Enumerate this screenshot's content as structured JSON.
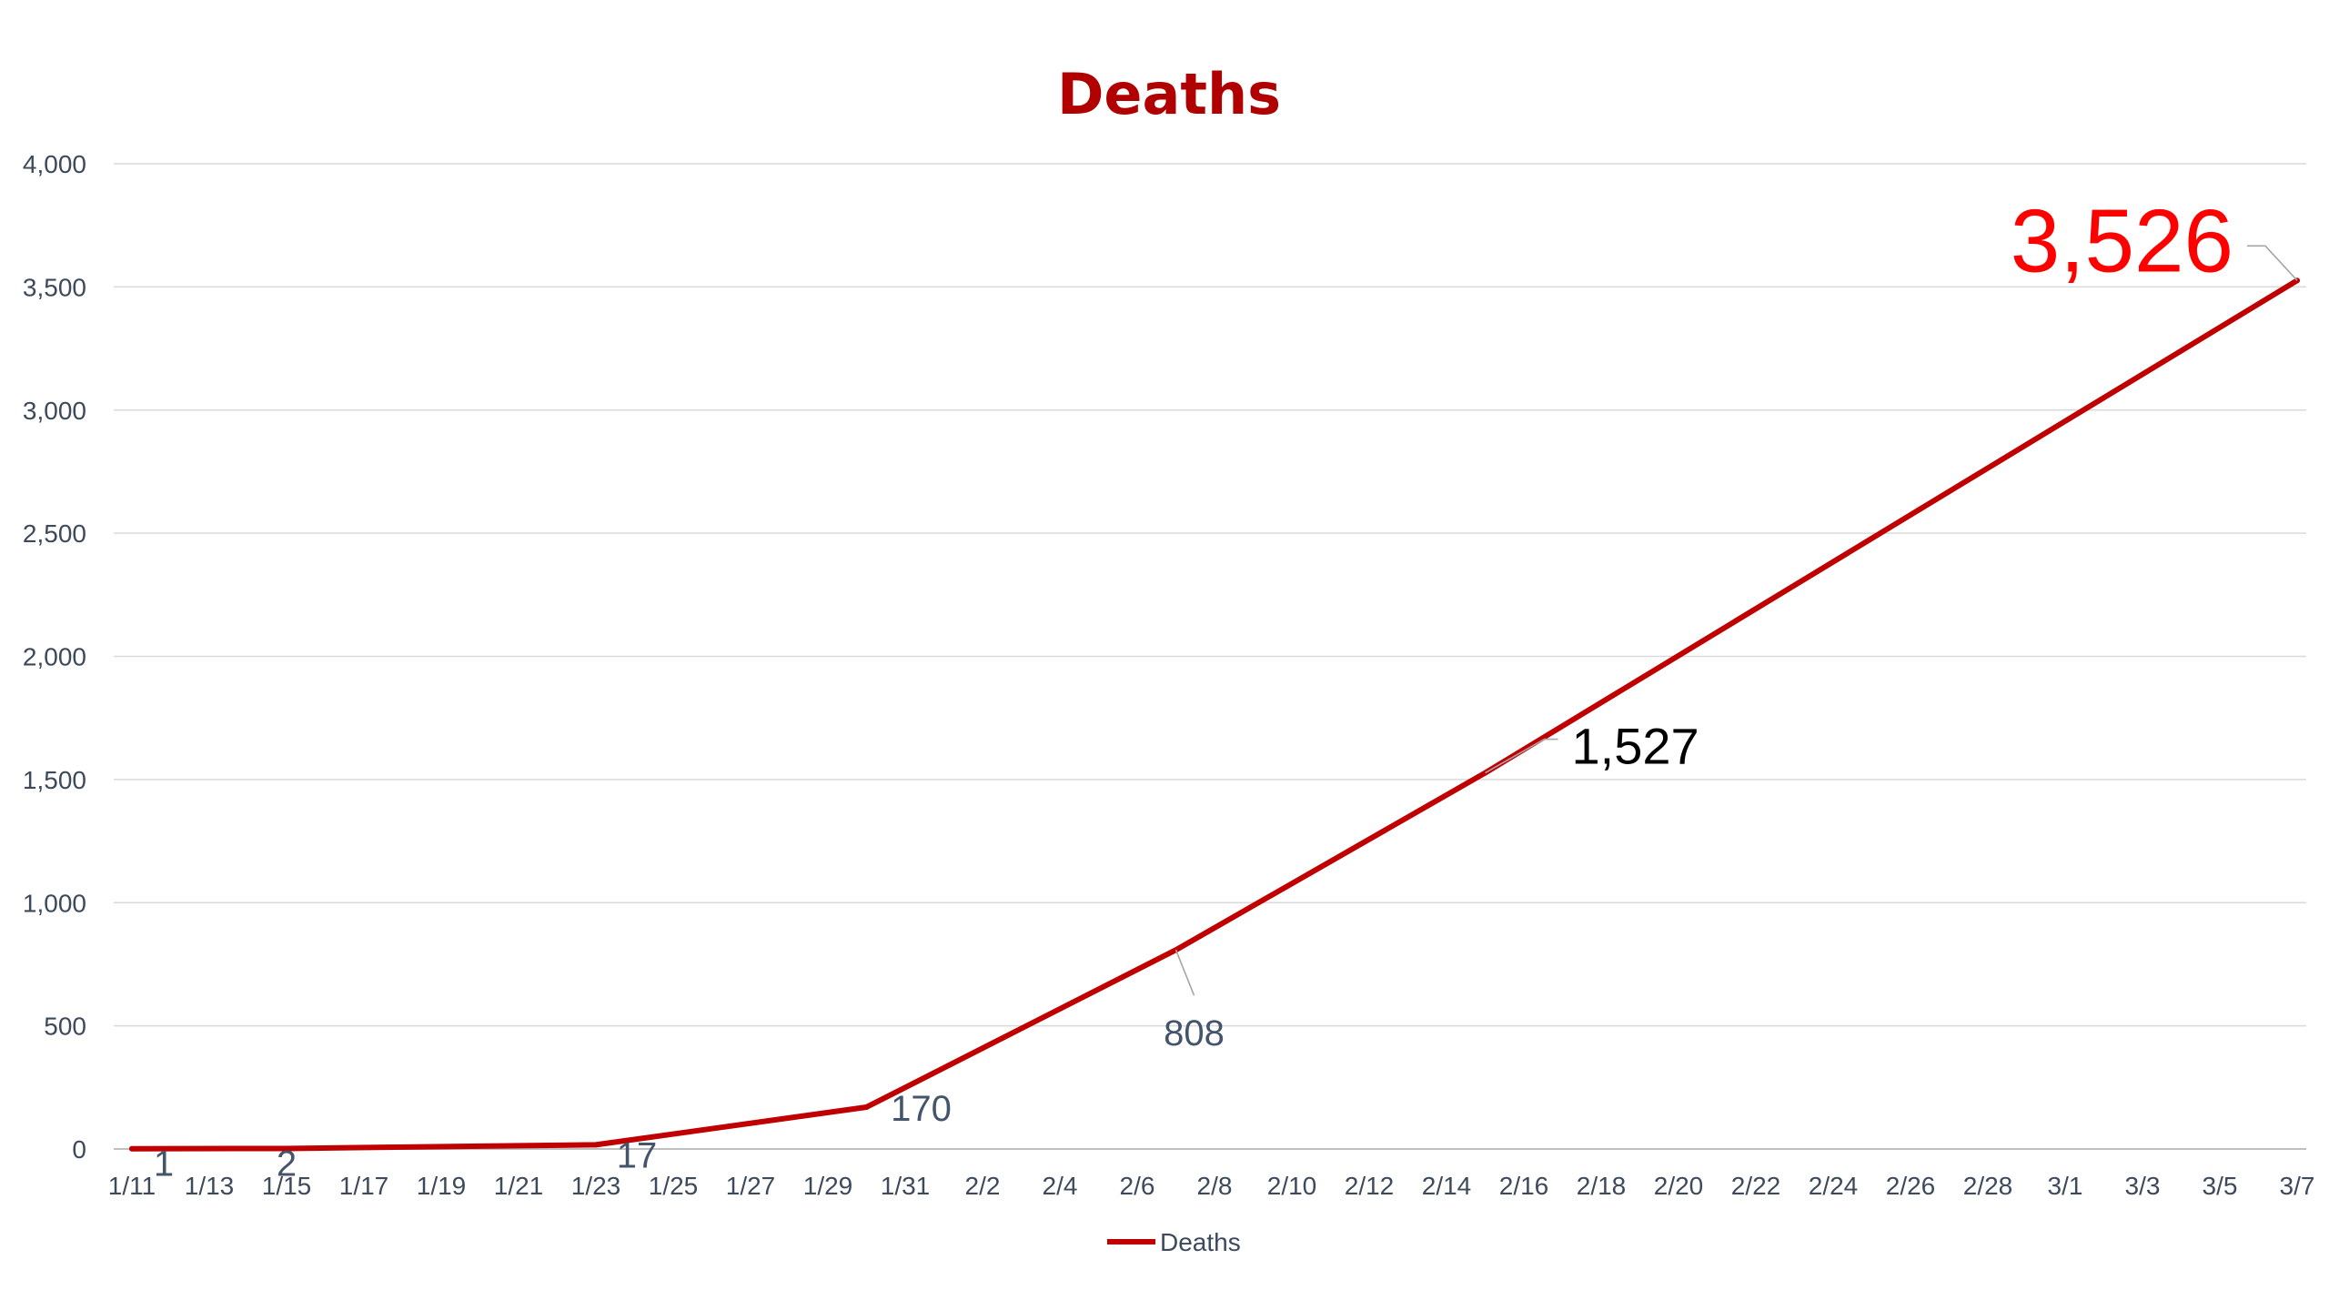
{
  "chart_data": {
    "type": "line",
    "title": "Deaths",
    "x_tick_labels": [
      "1/11",
      "1/13",
      "1/15",
      "1/17",
      "1/19",
      "1/21",
      "1/23",
      "1/25",
      "1/27",
      "1/29",
      "1/31",
      "2/2",
      "2/4",
      "2/6",
      "2/8",
      "2/10",
      "2/12",
      "2/14",
      "2/16",
      "2/18",
      "2/20",
      "2/22",
      "2/24",
      "2/26",
      "2/28",
      "3/1",
      "3/3",
      "3/5",
      "3/7"
    ],
    "y_tick_labels": [
      "0",
      "500",
      "1,000",
      "1,500",
      "2,000",
      "2,500",
      "3,000",
      "3,500",
      "4,000"
    ],
    "ylim": [
      0,
      4000
    ],
    "grid": true,
    "legend_position": "bottom",
    "series": [
      {
        "name": "Deaths",
        "color": "#c00000",
        "x": [
          "1/11",
          "1/15",
          "1/23",
          "1/30",
          "2/7",
          "2/15",
          "3/7"
        ],
        "values": [
          1,
          2,
          17,
          170,
          808,
          1527,
          3526
        ]
      }
    ],
    "data_labels": [
      {
        "text": "1",
        "point": 0,
        "color": "#44546a"
      },
      {
        "text": "2",
        "point": 1,
        "color": "#44546a"
      },
      {
        "text": "17",
        "point": 2,
        "color": "#44546a"
      },
      {
        "text": "170",
        "point": 3,
        "color": "#44546a"
      },
      {
        "text": "808",
        "point": 4,
        "color": "#44546a"
      },
      {
        "text": "1,527",
        "point": 5,
        "color": "#000000"
      },
      {
        "text": "3,526",
        "point": 6,
        "color": "#ff0000"
      }
    ]
  }
}
